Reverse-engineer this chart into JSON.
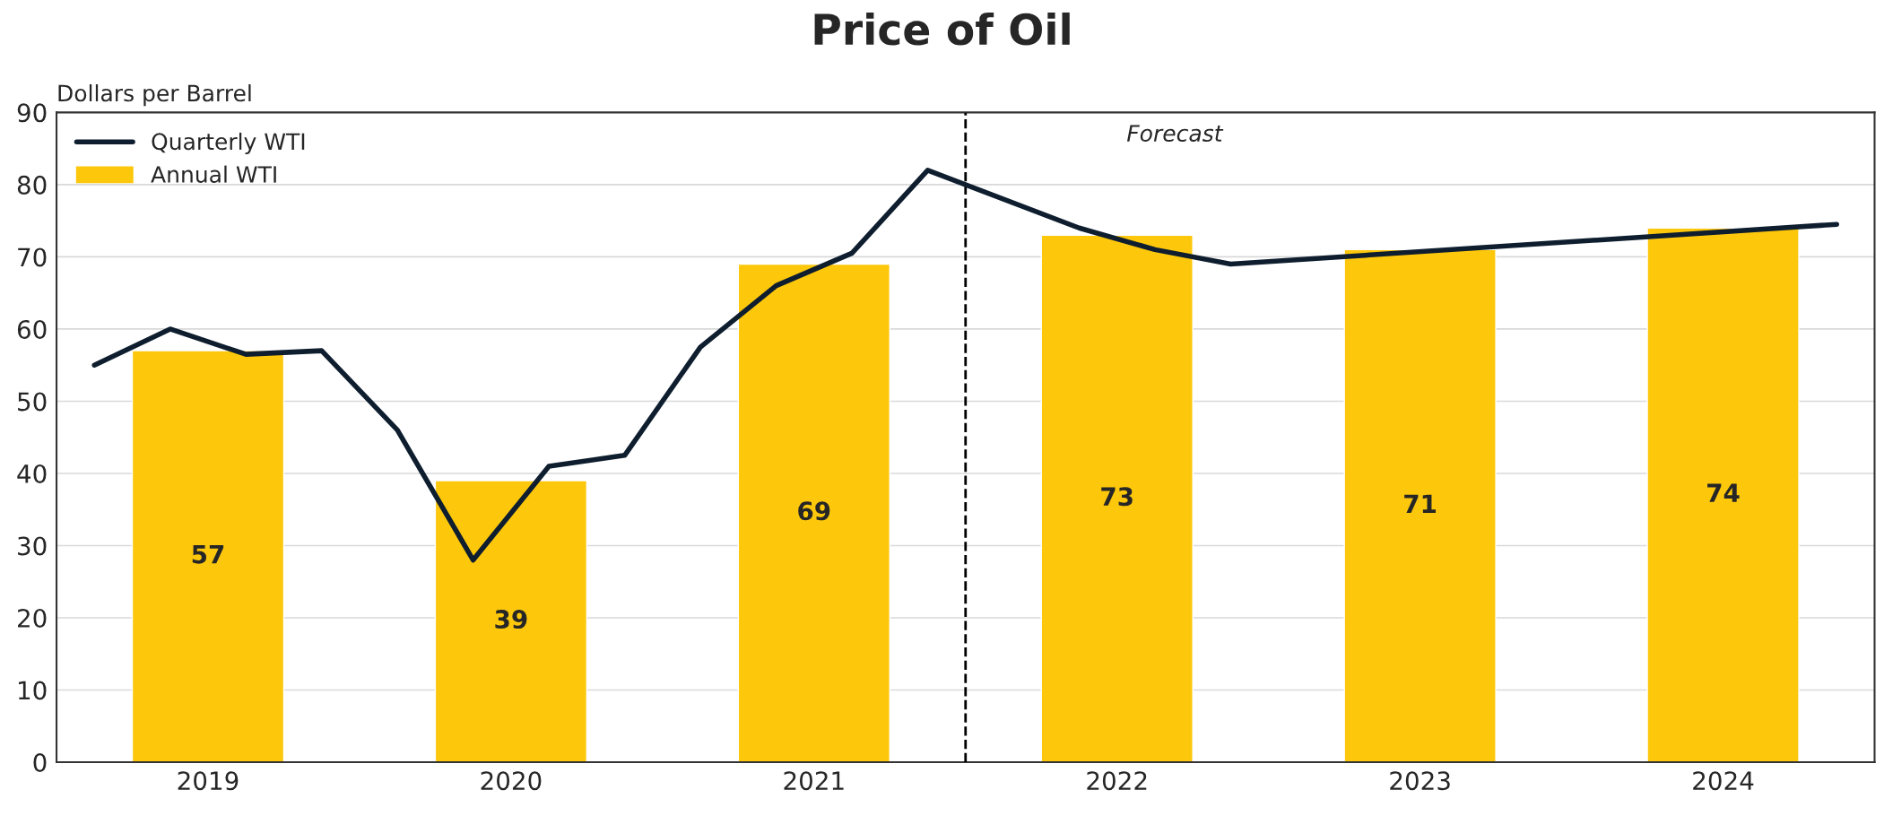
{
  "chart_data": {
    "type": "bar",
    "title": "Price of Oil",
    "ylabel": "Dollars per Barrel",
    "x": [
      2019,
      2020,
      2021,
      2022,
      2023,
      2024
    ],
    "xlim": [
      2018.5,
      2024.5
    ],
    "xticks": [
      2019,
      2020,
      2021,
      2022,
      2023,
      2024
    ],
    "ylim": [
      0,
      90
    ],
    "yticks": [
      0,
      10,
      20,
      30,
      40,
      50,
      60,
      70,
      80,
      90
    ],
    "grid": "y",
    "legend": "top left",
    "series": [
      {
        "name": "Quarterly WTI",
        "type": "line",
        "color": "#0f1e2f",
        "x": [
          2018.625,
          2018.875,
          2019.125,
          2019.375,
          2019.625,
          2019.875,
          2020.125,
          2020.375,
          2020.625,
          2020.875,
          2021.125,
          2021.375,
          2021.875,
          2022.125,
          2022.375,
          2024.375
        ],
        "values": [
          55,
          60,
          56.5,
          57,
          46,
          28,
          41,
          42.5,
          57.5,
          66,
          70.5,
          82,
          74,
          71,
          69,
          74.5
        ]
      },
      {
        "name": "Annual WTI",
        "color": "#fdc70c",
        "values": [
          57,
          39,
          69,
          73,
          71,
          74
        ],
        "value_labels": [
          "57",
          "39",
          "69",
          "73",
          "71",
          "74"
        ]
      }
    ],
    "ref_lines": [
      {
        "axis": "x",
        "value": 2021.5,
        "color": "#000000",
        "line_style": "dashed"
      }
    ],
    "annotations": [
      "Forecast"
    ]
  }
}
